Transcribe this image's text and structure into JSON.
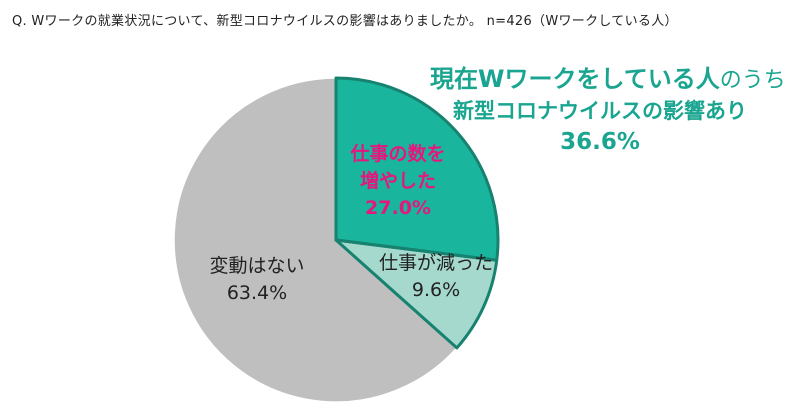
{
  "question": "Q.   Wワークの就業状況について、新型コロナウイルスの影響はありましたか。  n=426（Wワークしている人）",
  "callout": {
    "line1_bold": "現在Wワークをしている人",
    "line1_tail": "のうち",
    "line2": "新型コロナウイルスの影響あり",
    "line3": "36.6%"
  },
  "colors": {
    "increased": "#1ab59d",
    "decreased": "#a5d9cd",
    "unchanged": "#bfbfbf",
    "outline": "#16826f",
    "label_pink": "#e5177f",
    "callout_green": "#1aa590"
  },
  "chart_data": {
    "type": "pie",
    "title": "",
    "start_angle": "12 o'clock, clockwise",
    "slices": [
      {
        "key": "increased",
        "label_lines": [
          "仕事の数を",
          "増やした"
        ],
        "value": 27.0,
        "value_label": "27.0%"
      },
      {
        "key": "decreased",
        "label_lines": [
          "仕事が減った"
        ],
        "value": 9.6,
        "value_label": "9.6%"
      },
      {
        "key": "unchanged",
        "label_lines": [
          "変動はない"
        ],
        "value": 63.4,
        "value_label": "63.4%"
      }
    ]
  }
}
